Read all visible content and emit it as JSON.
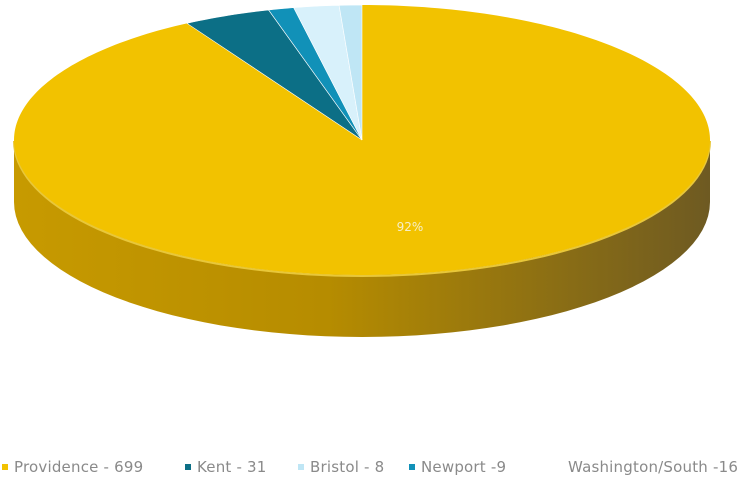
{
  "chart_data": {
    "type": "pie",
    "style": "3d",
    "title": "",
    "slices": [
      {
        "label": "Providence - 699",
        "category": "Providence",
        "value": 699,
        "color": "#f2c200",
        "side_color": "#b08a00"
      },
      {
        "label": "Kent - 31",
        "category": "Kent",
        "value": 31,
        "color": "#0c6f86",
        "side_color": "#0a5566"
      },
      {
        "label": "Bristol - 8",
        "category": "Bristol",
        "value": 8,
        "color": "#bfe6f5",
        "side_color": "#9fcfe2"
      },
      {
        "label": "Newport -9",
        "category": "Newport",
        "value": 9,
        "color": "#1191b8",
        "side_color": "#0d7290"
      },
      {
        "label": "Washington/South -16",
        "category": "Washington/South",
        "value": 16,
        "color": "#d8f1fb",
        "side_color": "#b9dcea"
      }
    ],
    "data_labels": [
      "92%"
    ],
    "legend_position": "bottom"
  }
}
